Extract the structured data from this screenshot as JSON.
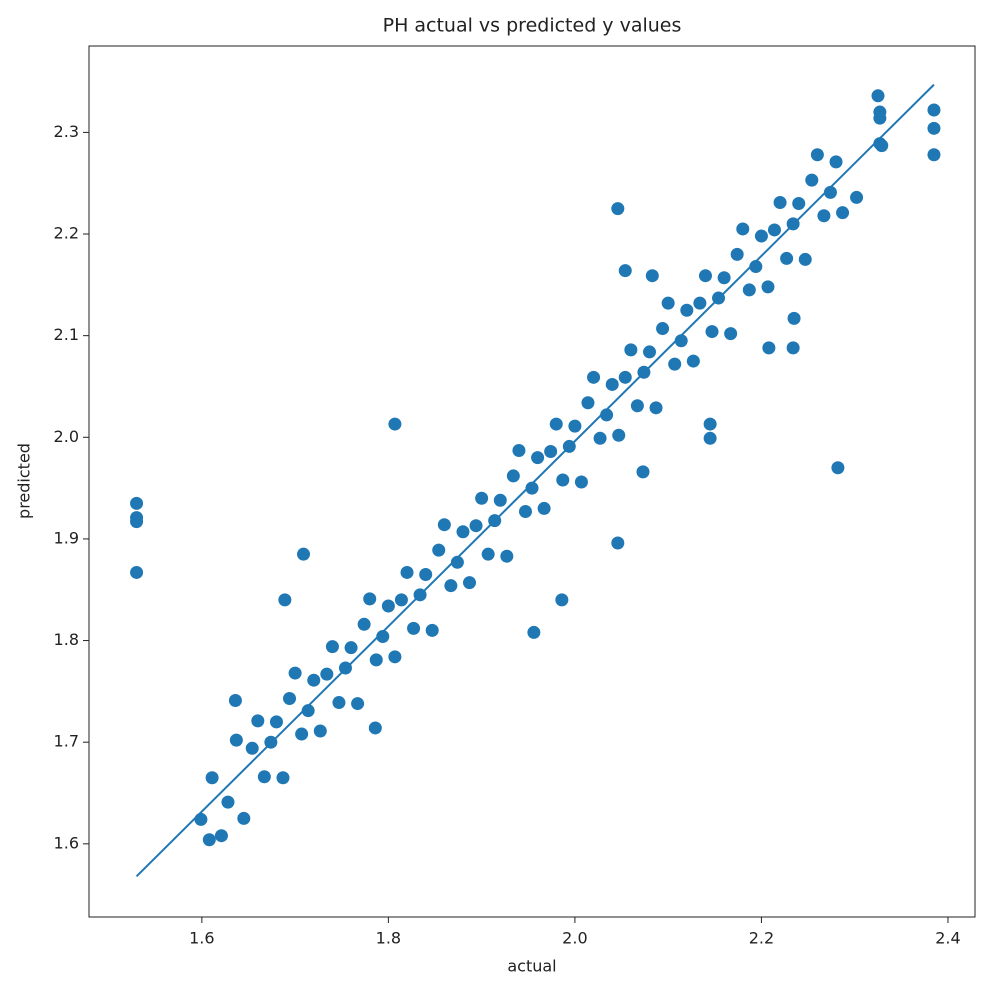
{
  "chart_data": {
    "type": "scatter",
    "title": "PH actual vs predicted y values",
    "xlabel": "actual",
    "ylabel": "predicted",
    "xlim": [
      1.479,
      2.429
    ],
    "ylim": [
      1.528,
      2.385
    ],
    "xticks": [
      1.6,
      1.8,
      {
        "value": 2,
        "label": "2.0"
      },
      2.2,
      2.4
    ],
    "yticks": [
      1.6,
      1.7,
      1.8,
      1.9,
      {
        "value": 2,
        "label": "2.0"
      },
      2.1,
      2.2,
      2.3
    ],
    "series": [
      {
        "type": "scatter",
        "color": "#1f77b4",
        "x": [
          1.53,
          1.53,
          1.53,
          1.53,
          1.807,
          2.046,
          2.282,
          2.385,
          2.385,
          2.385,
          2.325,
          2.327,
          2.327,
          2.327,
          2.329,
          1.599,
          1.608,
          1.621,
          1.611,
          1.628,
          1.645,
          1.637,
          1.636,
          1.709,
          1.689,
          1.786,
          2.046,
          2.145,
          2.145,
          2.208,
          2.234,
          2.235,
          2.302,
          1.956,
          1.986,
          2.073,
          2.083,
          2.054,
          1.66,
          1.667,
          1.654,
          1.68,
          1.687,
          1.674,
          1.7,
          1.707,
          1.694,
          1.72,
          1.727,
          1.714,
          1.74,
          1.747,
          1.734,
          1.76,
          1.767,
          1.754,
          1.78,
          1.787,
          1.774,
          1.8,
          1.807,
          1.794,
          1.82,
          1.827,
          1.814,
          1.84,
          1.847,
          1.834,
          1.86,
          1.867,
          1.854,
          1.88,
          1.887,
          1.874,
          1.9,
          1.907,
          1.894,
          1.92,
          1.927,
          1.914,
          1.94,
          1.947,
          1.934,
          1.96,
          1.967,
          1.954,
          1.98,
          1.987,
          1.974,
          2.0,
          2.007,
          1.994,
          2.02,
          2.027,
          2.014,
          2.04,
          2.047,
          2.034,
          2.06,
          2.067,
          2.054,
          2.08,
          2.087,
          2.074,
          2.1,
          2.107,
          2.094,
          2.12,
          2.127,
          2.114,
          2.14,
          2.147,
          2.134,
          2.16,
          2.167,
          2.154,
          2.18,
          2.187,
          2.174,
          2.2,
          2.207,
          2.194,
          2.22,
          2.227,
          2.214,
          2.24,
          2.247,
          2.234,
          2.26,
          2.267,
          2.254,
          2.28,
          2.287,
          2.274
        ],
        "values": [
          1.935,
          1.921,
          1.917,
          1.867,
          2.013,
          2.225,
          1.97,
          2.322,
          2.304,
          2.278,
          2.336,
          2.32,
          2.314,
          2.289,
          2.287,
          1.624,
          1.604,
          1.608,
          1.665,
          1.641,
          1.625,
          1.702,
          1.741,
          1.885,
          1.84,
          1.714,
          1.896,
          2.013,
          1.999,
          2.088,
          2.088,
          2.117,
          2.236,
          1.808,
          1.84,
          1.966,
          2.159,
          2.164,
          1.721,
          1.666,
          1.694,
          1.72,
          1.665,
          1.7,
          1.768,
          1.708,
          1.743,
          1.761,
          1.711,
          1.731,
          1.794,
          1.739,
          1.767,
          1.793,
          1.738,
          1.773,
          1.841,
          1.781,
          1.816,
          1.834,
          1.784,
          1.804,
          1.867,
          1.812,
          1.84,
          1.865,
          1.81,
          1.845,
          1.914,
          1.854,
          1.889,
          1.907,
          1.857,
          1.877,
          1.94,
          1.885,
          1.913,
          1.938,
          1.883,
          1.918,
          1.987,
          1.927,
          1.962,
          1.98,
          1.93,
          1.95,
          2.013,
          1.958,
          1.986,
          2.011,
          1.956,
          1.991,
          2.059,
          1.999,
          2.034,
          2.052,
          2.002,
          2.022,
          2.086,
          2.031,
          2.059,
          2.084,
          2.029,
          2.064,
          2.132,
          2.072,
          2.107,
          2.125,
          2.075,
          2.095,
          2.159,
          2.104,
          2.132,
          2.157,
          2.102,
          2.137,
          2.205,
          2.145,
          2.18,
          2.198,
          2.148,
          2.168,
          2.231,
          2.176,
          2.204,
          2.23,
          2.175,
          2.21,
          2.278,
          2.218,
          2.253,
          2.271,
          2.221,
          2.241
        ]
      },
      {
        "type": "line",
        "color": "#1f77b4",
        "x": [
          1.53,
          2.385
        ],
        "values": [
          1.568,
          2.347
        ]
      }
    ]
  }
}
